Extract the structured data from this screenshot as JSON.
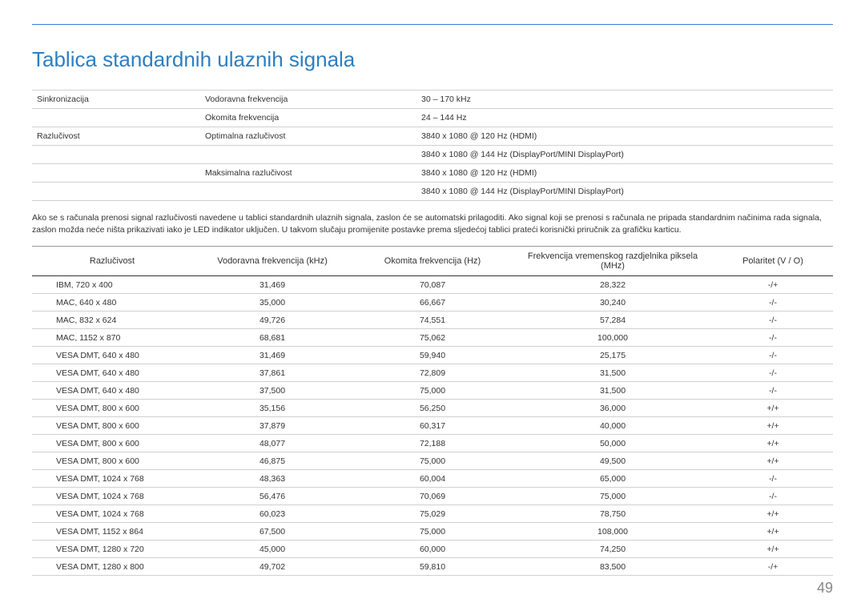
{
  "page": {
    "title": "Tablica standardnih ulaznih signala",
    "number": "49",
    "colors": {
      "accent": "#2d7fc1",
      "rule": "#3a7bd5",
      "border_light": "#d0d0d0",
      "border_dark": "#333333",
      "text": "#333333",
      "page_num": "#888888",
      "background": "#ffffff"
    }
  },
  "spec_table": {
    "rows": [
      {
        "c1": "Sinkronizacija",
        "c2": "Vodoravna frekvencija",
        "c3": "30 – 170 kHz"
      },
      {
        "c1": "",
        "c2": "Okomita frekvencija",
        "c3": "24 – 144 Hz"
      },
      {
        "c1": "Razlučivost",
        "c2": "Optimalna razlučivost",
        "c3": "3840 x 1080 @ 120 Hz (HDMI)"
      },
      {
        "c1": "",
        "c2": "",
        "c3": "3840 x 1080 @ 144 Hz (DisplayPort/MINI DisplayPort)"
      },
      {
        "c1": "",
        "c2": "Maksimalna razlučivost",
        "c3": "3840 x 1080 @ 120 Hz (HDMI)"
      },
      {
        "c1": "",
        "c2": "",
        "c3": "3840 x 1080 @ 144 Hz (DisplayPort/MINI DisplayPort)"
      }
    ]
  },
  "note": "Ako se s računala prenosi signal razlučivosti navedene u tablici standardnih ulaznih signala, zaslon će se automatski prilagoditi. Ako signal koji se prenosi s računala ne pripada standardnim načinima rada signala, zaslon možda neće ništa prikazivati iako je LED indikator uključen. U takvom slučaju promijenite postavke prema sljedećoj tablici prateći korisnički priručnik za grafičku karticu.",
  "modes_table": {
    "columns": [
      "Razlučivost",
      "Vodoravna frekvencija (kHz)",
      "Okomita frekvencija (Hz)",
      "Frekvencija vremenskog razdjelnika piksela (MHz)",
      "Polaritet (V / O)"
    ],
    "rows": [
      [
        "IBM, 720 x 400",
        "31,469",
        "70,087",
        "28,322",
        "-/+"
      ],
      [
        "MAC, 640 x 480",
        "35,000",
        "66,667",
        "30,240",
        "-/-"
      ],
      [
        "MAC, 832 x 624",
        "49,726",
        "74,551",
        "57,284",
        "-/-"
      ],
      [
        "MAC, 1152 x 870",
        "68,681",
        "75,062",
        "100,000",
        "-/-"
      ],
      [
        "VESA DMT, 640 x 480",
        "31,469",
        "59,940",
        "25,175",
        "-/-"
      ],
      [
        "VESA DMT, 640 x 480",
        "37,861",
        "72,809",
        "31,500",
        "-/-"
      ],
      [
        "VESA DMT, 640 x 480",
        "37,500",
        "75,000",
        "31,500",
        "-/-"
      ],
      [
        "VESA DMT, 800 x 600",
        "35,156",
        "56,250",
        "36,000",
        "+/+"
      ],
      [
        "VESA DMT, 800 x 600",
        "37,879",
        "60,317",
        "40,000",
        "+/+"
      ],
      [
        "VESA DMT, 800 x 600",
        "48,077",
        "72,188",
        "50,000",
        "+/+"
      ],
      [
        "VESA DMT, 800 x 600",
        "46,875",
        "75,000",
        "49,500",
        "+/+"
      ],
      [
        "VESA DMT, 1024 x 768",
        "48,363",
        "60,004",
        "65,000",
        "-/-"
      ],
      [
        "VESA DMT, 1024 x 768",
        "56,476",
        "70,069",
        "75,000",
        "-/-"
      ],
      [
        "VESA DMT, 1024 x 768",
        "60,023",
        "75,029",
        "78,750",
        "+/+"
      ],
      [
        "VESA DMT, 1152 x 864",
        "67,500",
        "75,000",
        "108,000",
        "+/+"
      ],
      [
        "VESA DMT, 1280 x 720",
        "45,000",
        "60,000",
        "74,250",
        "+/+"
      ],
      [
        "VESA DMT, 1280 x 800",
        "49,702",
        "59,810",
        "83,500",
        "-/+"
      ]
    ]
  }
}
